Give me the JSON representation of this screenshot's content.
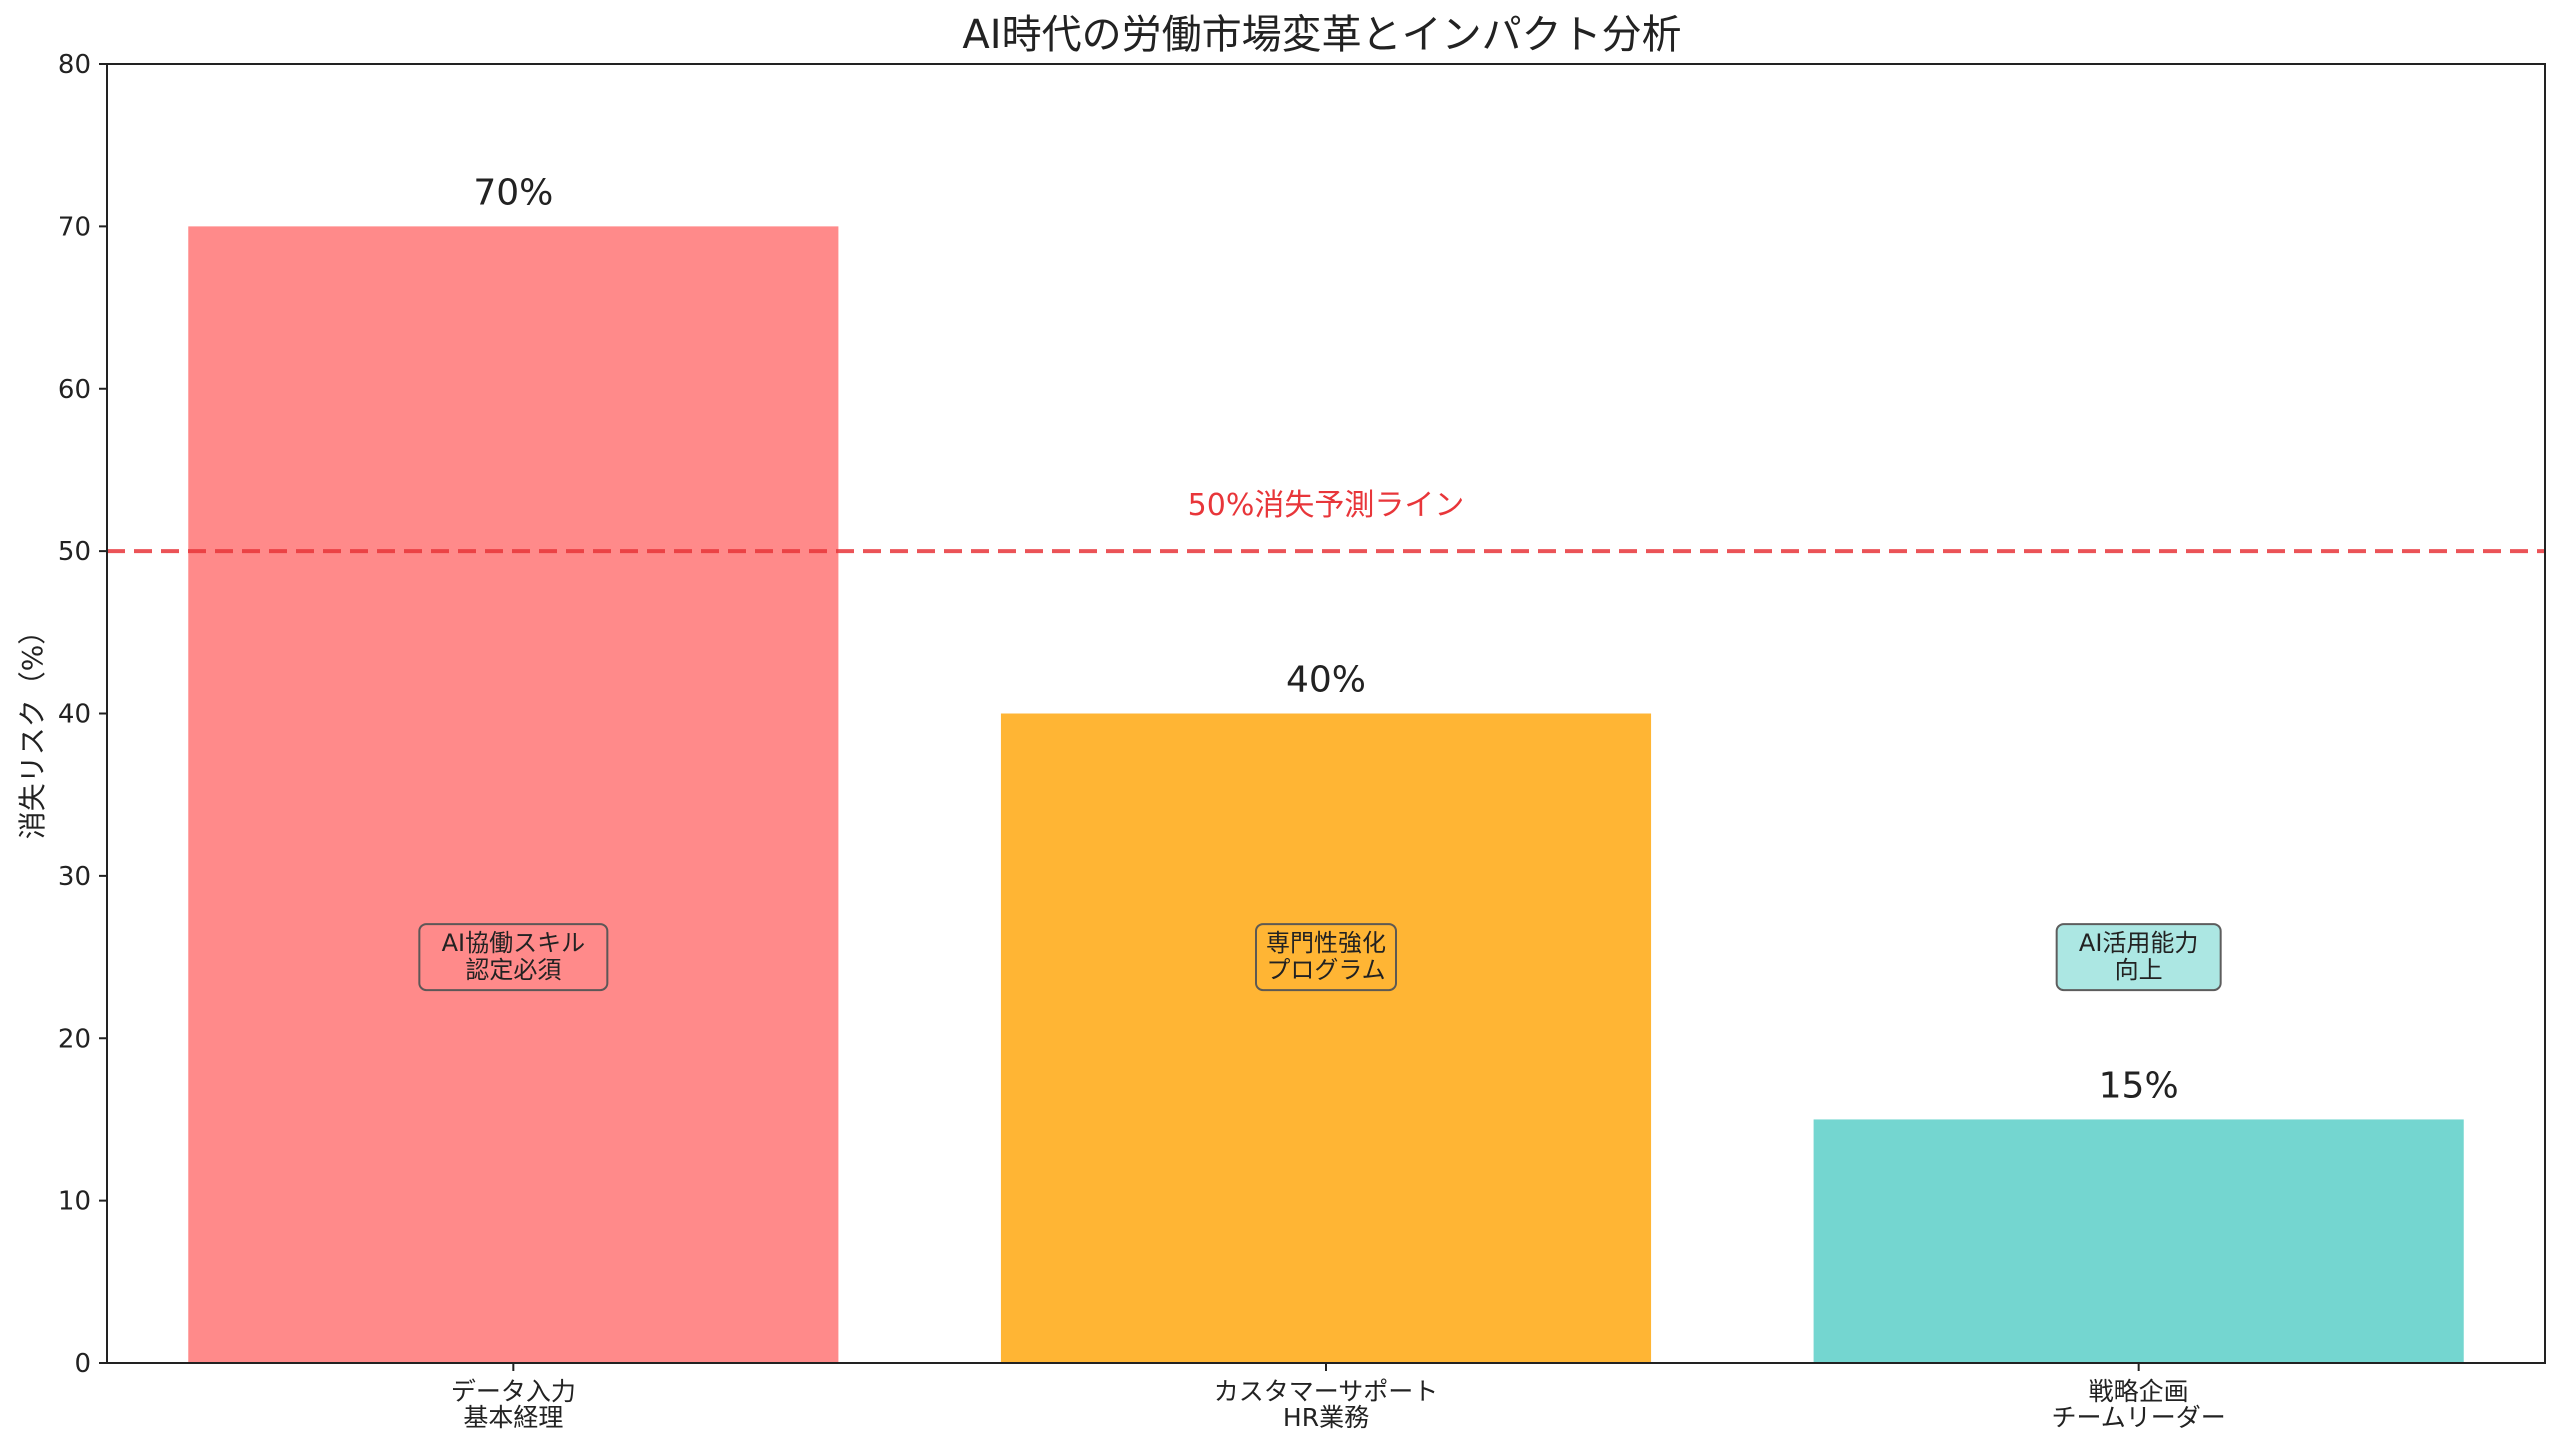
{
  "chart_data": {
    "type": "bar",
    "title": "AI時代の労働市場変革とインパクト分析",
    "xlabel": "",
    "ylabel": "消失リスク（%）",
    "ylim": [
      0,
      80
    ],
    "yticks": [
      0,
      10,
      20,
      30,
      40,
      50,
      60,
      70,
      80
    ],
    "categories": [
      [
        "データ入力",
        "基本経理"
      ],
      [
        "カスタマーサポート",
        "HR業務"
      ],
      [
        "戦略企画",
        "チームリーダー"
      ]
    ],
    "values": [
      70,
      40,
      15
    ],
    "value_labels": [
      "70%",
      "40%",
      "15%"
    ],
    "bar_colors": [
      "#ff8a8a",
      "#ffb534",
      "#74d6d0"
    ],
    "annotations": [
      {
        "lines": [
          "AI協働スキル",
          "認定必須"
        ],
        "y": 25,
        "facecolor": "#ff8a8a"
      },
      {
        "lines": [
          "専門性強化",
          "プログラム"
        ],
        "y": 25,
        "facecolor": "#ffb534"
      },
      {
        "lines": [
          "AI活用能力",
          "向上"
        ],
        "y": 25,
        "facecolor": "#a8e6e2"
      }
    ],
    "reference_line": {
      "y": 50,
      "label": "50%消失予測ライン",
      "color": "#e8363a",
      "style": "dashed"
    },
    "grid": false
  }
}
